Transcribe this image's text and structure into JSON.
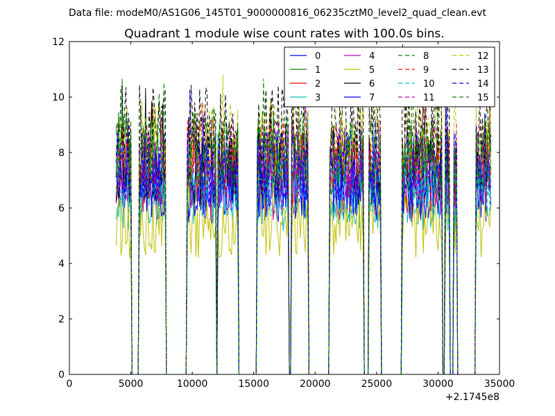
{
  "chart_data": {
    "type": "line",
    "suptitle": "Data file: modeM0/AS1G06_145T01_9000000816_06235cztM0_level2_quad_clean.evt",
    "title": "Quadrant 1 module wise count rates with 100.0s bins.",
    "xlabel": "",
    "ylabel": "",
    "x_offset_label": "+2.1745e8",
    "xlim": [
      0,
      35000
    ],
    "ylim": [
      0,
      12
    ],
    "xticks": [
      0,
      5000,
      10000,
      15000,
      20000,
      25000,
      30000,
      35000
    ],
    "xtick_labels": [
      "0",
      "5000",
      "10000",
      "15000",
      "20000",
      "25000",
      "30000",
      "35000"
    ],
    "yticks": [
      0,
      2,
      4,
      6,
      8,
      10,
      12
    ],
    "ytick_labels": [
      "0",
      "2",
      "4",
      "6",
      "8",
      "10",
      "12"
    ],
    "grid": false,
    "legend_position": "top-right",
    "legend_columns": 4,
    "bin_seconds": 100,
    "segments": [
      [
        3800,
        5000
      ],
      [
        5700,
        7800
      ],
      [
        9600,
        11900
      ],
      [
        12100,
        13700
      ],
      [
        15300,
        17800
      ],
      [
        18100,
        19400
      ],
      [
        21200,
        23900
      ],
      [
        24400,
        25300
      ],
      [
        27100,
        30300
      ],
      [
        30600,
        30900
      ],
      [
        31300,
        31500
      ],
      [
        33100,
        34300
      ]
    ],
    "series": [
      {
        "name": "0",
        "color": "#0000ff",
        "dash": "solid",
        "level": 6.7
      },
      {
        "name": "1",
        "color": "#008000",
        "dash": "solid",
        "level": 7.6
      },
      {
        "name": "2",
        "color": "#ff0000",
        "dash": "solid",
        "level": 7.3
      },
      {
        "name": "3",
        "color": "#00bfbf",
        "dash": "solid",
        "level": 6.4
      },
      {
        "name": "4",
        "color": "#bf00bf",
        "dash": "solid",
        "level": 6.8
      },
      {
        "name": "5",
        "color": "#bfbf00",
        "dash": "solid",
        "level": 5.3
      },
      {
        "name": "6",
        "color": "#000000",
        "dash": "solid",
        "level": 7.4
      },
      {
        "name": "7",
        "color": "#0000ff",
        "dash": "solid",
        "level": 6.9
      },
      {
        "name": "8",
        "color": "#008000",
        "dash": "dashed",
        "level": 7.9
      },
      {
        "name": "9",
        "color": "#ff0000",
        "dash": "dashed",
        "level": 7.8
      },
      {
        "name": "10",
        "color": "#00bfbf",
        "dash": "dashed",
        "level": 6.9
      },
      {
        "name": "11",
        "color": "#bf00bf",
        "dash": "dashed",
        "level": 7.9
      },
      {
        "name": "12",
        "color": "#bfbf00",
        "dash": "dashed",
        "level": 8.5
      },
      {
        "name": "13",
        "color": "#000000",
        "dash": "dashed",
        "level": 9.0
      },
      {
        "name": "14",
        "color": "#0000ff",
        "dash": "dashed",
        "level": 7.5
      },
      {
        "name": "15",
        "color": "#008000",
        "dash": "dashed",
        "level": 8.1
      }
    ]
  }
}
